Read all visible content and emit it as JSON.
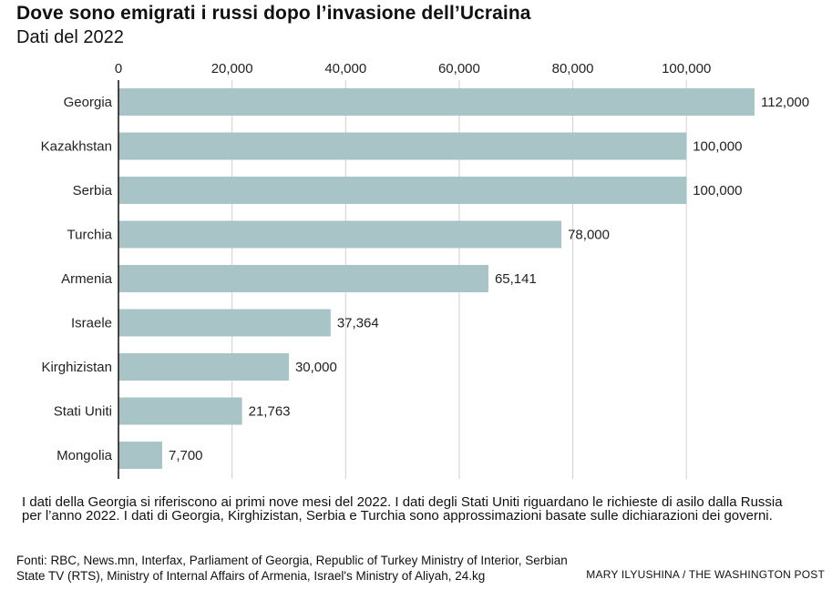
{
  "header": {
    "title": "Dove sono emigrati i russi dopo l’invasione dell’Ucraina",
    "subtitle": "Dati del 2022"
  },
  "chart_data": {
    "type": "bar",
    "orientation": "horizontal",
    "title": "Dove sono emigrati i russi dopo l’invasione dell’Ucraina",
    "subtitle": "Dati del 2022",
    "categories": [
      "Georgia",
      "Kazakhstan",
      "Serbia",
      "Turchia",
      "Armenia",
      "Israele",
      "Kirghizistan",
      "Stati Uniti",
      "Mongolia"
    ],
    "values": [
      112000,
      100000,
      100000,
      78000,
      65141,
      37364,
      30000,
      21763,
      7700
    ],
    "value_labels": [
      "112,000",
      "100,000",
      "100,000",
      "78,000",
      "65,141",
      "37,364",
      "30,000",
      "21,763",
      "7,700"
    ],
    "xlim": [
      0,
      112000
    ],
    "xticks": [
      0,
      20000,
      40000,
      60000,
      80000,
      100000
    ],
    "xtick_labels": [
      "0",
      "20,000",
      "40,000",
      "60,000",
      "80,000",
      "100,000"
    ],
    "xaxis_position": "top",
    "grid": true,
    "bar_color": "#a9c4c7",
    "grid_color": "#d0d0d0"
  },
  "footer": {
    "note": "I dati della Georgia si riferiscono ai primi nove mesi del 2022. I dati degli Stati Uniti riguardano le richieste di asilo dalla Russia per l’anno 2022. I dati di Georgia, Kirghizistan, Serbia e Turchia sono approssimazioni basate sulle dichiarazioni dei governi.",
    "sources_label": "Fonti:",
    "sources_text": " RBC, News.mn, Interfax, Parliament of Georgia, Republic of Turkey Ministry of Interior, Serbian State TV (RTS), Ministry of Internal Affairs of Armenia, Israel's Ministry of Aliyah, 24.kg",
    "credit": "MARY ILYUSHINA / THE WASHINGTON POST"
  }
}
